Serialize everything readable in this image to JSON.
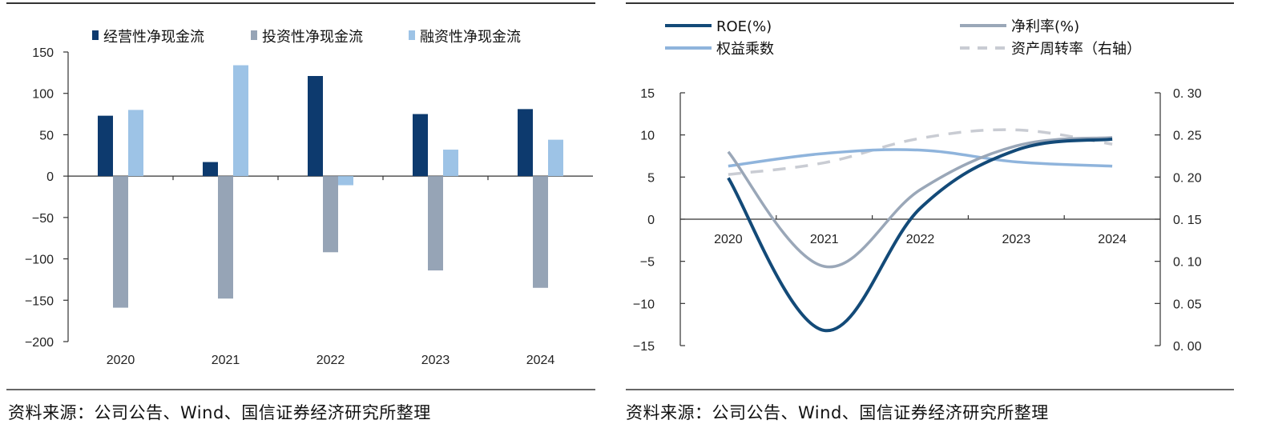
{
  "panels": {
    "left_source": "资料来源：公司公告、Wind、国信证券经济研究所整理",
    "right_source": "资料来源：公司公告、Wind、国信证券经济研究所整理"
  },
  "chart_data": [
    {
      "type": "bar",
      "title": "",
      "categories": [
        "2020",
        "2021",
        "2022",
        "2023",
        "2024"
      ],
      "series": [
        {
          "name": "经营性净现金流",
          "color": "#0d3a6e",
          "values": [
            73,
            17,
            121,
            75,
            81
          ]
        },
        {
          "name": "投资性净现金流",
          "color": "#96a4b6",
          "values": [
            -159,
            -148,
            -92,
            -114,
            -135
          ]
        },
        {
          "name": "融资性净现金流",
          "color": "#9dc3e6",
          "values": [
            80,
            134,
            -11,
            32,
            44
          ]
        }
      ],
      "xlabel": "",
      "ylabel": "",
      "ylim": [
        -200,
        150
      ],
      "yticks": [
        150,
        100,
        50,
        0,
        -50,
        -100,
        -150,
        -200
      ],
      "ytick_labels": [
        "150",
        "100",
        "50",
        "0",
        "−50",
        "−100",
        "−150",
        "−200"
      ],
      "grid": false,
      "legend_position": "top"
    },
    {
      "type": "line",
      "title": "",
      "categories": [
        "2020",
        "2021",
        "2022",
        "2023",
        "2024"
      ],
      "series": [
        {
          "name": "ROE(%)",
          "axis": "left",
          "color": "#134a78",
          "dashed": false,
          "values": [
            4.9,
            -13.2,
            1.3,
            8.2,
            9.5
          ]
        },
        {
          "name": "净利率(%)",
          "axis": "left",
          "color": "#9aa7b8",
          "dashed": false,
          "values": [
            8.0,
            -5.6,
            3.5,
            8.7,
            9.7
          ]
        },
        {
          "name": "权益乘数",
          "axis": "left",
          "color": "#8fb4dc",
          "dashed": false,
          "values": [
            6.3,
            7.8,
            8.2,
            6.8,
            6.3
          ]
        },
        {
          "name": "资产周转率（右轴）",
          "axis": "right",
          "color": "#c9ccd3",
          "dashed": true,
          "values": [
            0.203,
            0.217,
            0.246,
            0.256,
            0.239
          ]
        }
      ],
      "ylim_left": [
        -15,
        15
      ],
      "yticks_left": [
        15,
        10,
        5,
        0,
        -5,
        -10,
        -15
      ],
      "ytick_labels_left": [
        "15",
        "10",
        "5",
        "0",
        "−5",
        "−10",
        "−15"
      ],
      "ylim_right": [
        0,
        0.3
      ],
      "yticks_right": [
        0.3,
        0.25,
        0.2,
        0.15,
        0.1,
        0.05,
        0.0
      ],
      "ytick_labels_right": [
        "0. 30",
        "0. 25",
        "0. 20",
        "0. 15",
        "0. 10",
        "0. 05",
        "0. 00"
      ],
      "grid": false,
      "legend_position": "top"
    }
  ]
}
